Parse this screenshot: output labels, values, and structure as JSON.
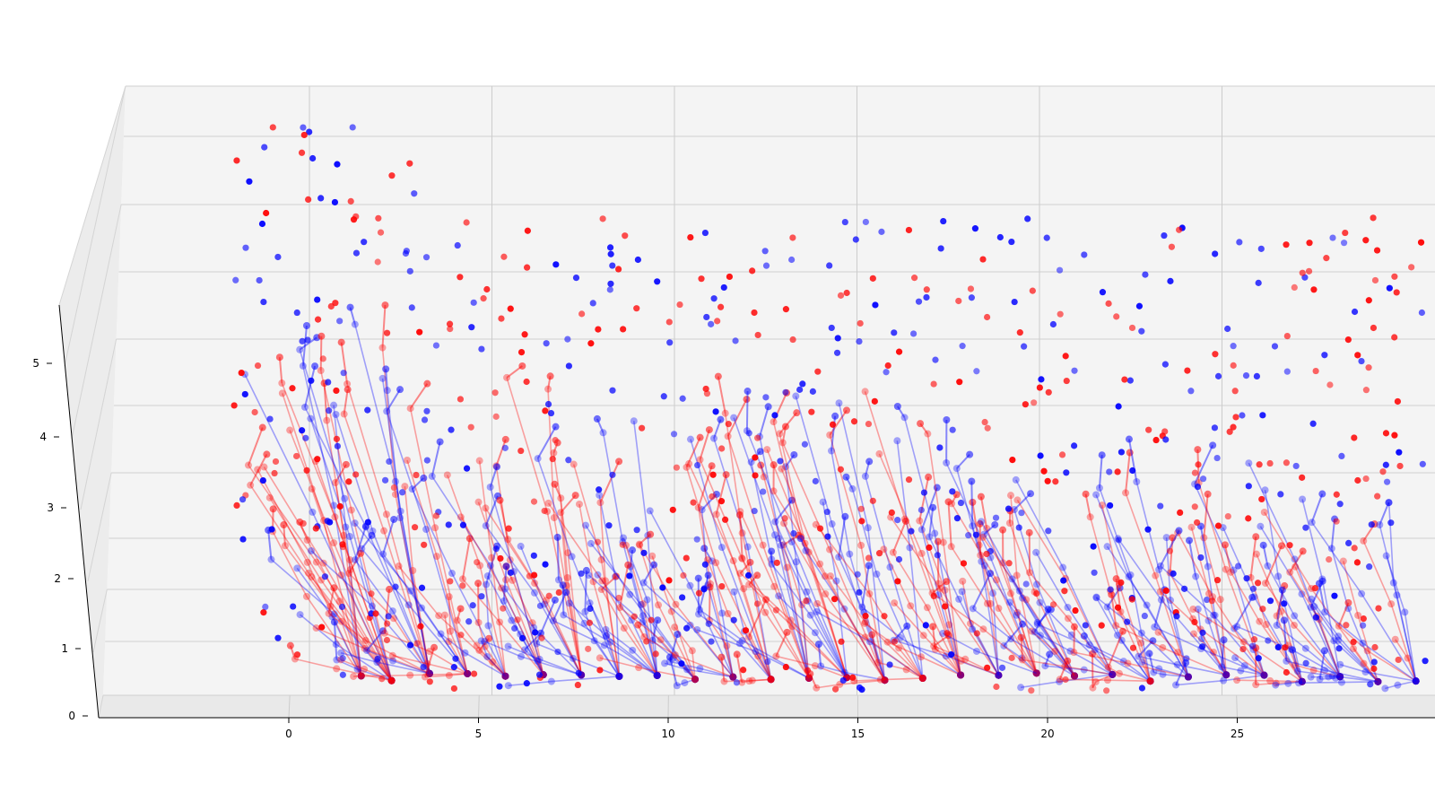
{
  "chart_data": {
    "type": "line",
    "projection": "3d",
    "title": "",
    "xlabel": "",
    "ylabel": "",
    "zlabel": "",
    "x_ticks": [
      0,
      5,
      10,
      15,
      20,
      25
    ],
    "z_ticks": [
      0,
      1,
      2,
      3,
      4,
      5
    ],
    "xlim": [
      -5,
      30
    ],
    "zlim": [
      0,
      5.7
    ],
    "grid": true,
    "pane_color": "#f4f4f4",
    "series": [
      {
        "color": "#ff0000",
        "marker": "o",
        "alpha": 0.35
      },
      {
        "color": "#0000ff",
        "marker": "o",
        "alpha": 0.35
      }
    ],
    "trees": [
      {
        "x": 1.2,
        "top": 4.6,
        "spread": 0.8,
        "arms": 10
      },
      {
        "x": 2.0,
        "top": 5.4,
        "spread": 1.2,
        "arms": 18
      },
      {
        "x": 3.0,
        "top": 5.3,
        "spread": 1.0,
        "arms": 16
      },
      {
        "x": 4.0,
        "top": 4.3,
        "spread": 0.9,
        "arms": 12
      },
      {
        "x": 5.0,
        "top": 3.9,
        "spread": 0.9,
        "arms": 10
      },
      {
        "x": 6.0,
        "top": 3.6,
        "spread": 0.9,
        "arms": 10
      },
      {
        "x": 7.0,
        "top": 4.8,
        "spread": 0.9,
        "arms": 12
      },
      {
        "x": 8.0,
        "top": 4.0,
        "spread": 0.9,
        "arms": 10
      },
      {
        "x": 9.0,
        "top": 4.4,
        "spread": 0.9,
        "arms": 12
      },
      {
        "x": 10.0,
        "top": 4.2,
        "spread": 0.9,
        "arms": 10
      },
      {
        "x": 11.0,
        "top": 3.8,
        "spread": 0.9,
        "arms": 10
      },
      {
        "x": 12.0,
        "top": 4.5,
        "spread": 0.9,
        "arms": 12
      },
      {
        "x": 13.0,
        "top": 4.3,
        "spread": 0.9,
        "arms": 12
      },
      {
        "x": 14.0,
        "top": 4.3,
        "spread": 0.9,
        "arms": 12
      },
      {
        "x": 15.0,
        "top": 4.6,
        "spread": 0.9,
        "arms": 12
      },
      {
        "x": 16.0,
        "top": 4.1,
        "spread": 0.9,
        "arms": 10
      },
      {
        "x": 17.0,
        "top": 4.9,
        "spread": 0.9,
        "arms": 12
      },
      {
        "x": 18.0,
        "top": 3.5,
        "spread": 0.9,
        "arms": 10
      },
      {
        "x": 19.0,
        "top": 3.6,
        "spread": 0.9,
        "arms": 10
      },
      {
        "x": 20.0,
        "top": 3.4,
        "spread": 0.9,
        "arms": 10
      },
      {
        "x": 21.0,
        "top": 3.3,
        "spread": 0.9,
        "arms": 10
      },
      {
        "x": 22.0,
        "top": 3.3,
        "spread": 0.9,
        "arms": 10
      },
      {
        "x": 23.0,
        "top": 3.4,
        "spread": 0.9,
        "arms": 10
      },
      {
        "x": 24.0,
        "top": 3.6,
        "spread": 0.9,
        "arms": 10
      },
      {
        "x": 25.0,
        "top": 3.4,
        "spread": 0.9,
        "arms": 10
      },
      {
        "x": 26.0,
        "top": 3.3,
        "spread": 0.9,
        "arms": 10
      },
      {
        "x": 27.0,
        "top": 3.6,
        "spread": 0.9,
        "arms": 12
      },
      {
        "x": 28.0,
        "top": 3.4,
        "spread": 0.9,
        "arms": 10
      },
      {
        "x": 29.0,
        "top": 3.0,
        "spread": 0.9,
        "arms": 10
      }
    ]
  }
}
